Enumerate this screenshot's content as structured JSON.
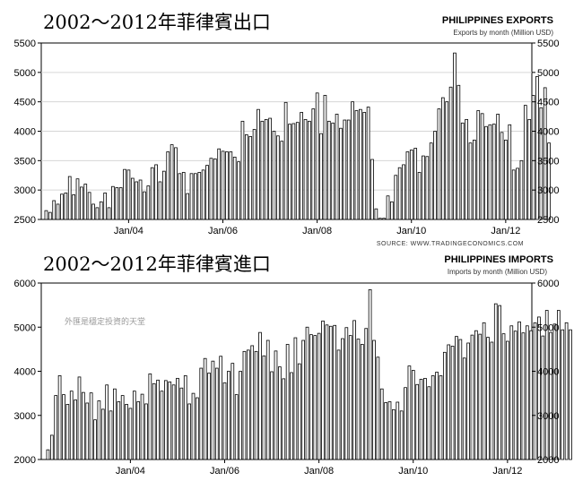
{
  "chart_data": [
    {
      "type": "bar",
      "title": "2002～2012年菲律賓出口",
      "brand_title": "PHILIPPINES EXPORTS",
      "subtitle": "Exports by month (Million USD)",
      "source": "SOURCE: WWW.TRADINGECONOMICS.COM",
      "ylim": [
        2500,
        5500
      ],
      "yticks": [
        2500,
        3000,
        3500,
        4000,
        4500,
        5000,
        5500
      ],
      "xticks": [
        {
          "label": "Jan/04",
          "index": 21
        },
        {
          "label": "Jan/06",
          "index": 45
        },
        {
          "label": "Jan/08",
          "index": 69
        },
        {
          "label": "Jan/10",
          "index": 93
        },
        {
          "label": "Jan/12",
          "index": 117
        }
      ],
      "grid": true,
      "start": "2002-04",
      "values": [
        2650,
        2620,
        2820,
        2760,
        2930,
        2950,
        3230,
        2920,
        3190,
        3050,
        3100,
        2960,
        2760,
        2700,
        2800,
        2950,
        2700,
        3060,
        3040,
        3040,
        3350,
        3340,
        3200,
        3140,
        3170,
        2970,
        3070,
        3380,
        3430,
        3140,
        3320,
        3650,
        3770,
        3720,
        3280,
        3300,
        2940,
        3280,
        3280,
        3300,
        3340,
        3420,
        3540,
        3530,
        3700,
        3660,
        3650,
        3650,
        3560,
        3480,
        4170,
        3940,
        3910,
        4030,
        4370,
        4170,
        4200,
        4220,
        4000,
        3920,
        3830,
        4490,
        4120,
        4130,
        4150,
        4320,
        4200,
        4170,
        4380,
        4650,
        3960,
        4610,
        4170,
        4140,
        4290,
        4050,
        4190,
        4190,
        4500,
        4350,
        4370,
        4320,
        4410,
        3520,
        2680,
        2520,
        2520,
        2900,
        2800,
        3250,
        3380,
        3430,
        3650,
        3680,
        3710,
        3300,
        3580,
        3570,
        3800,
        4000,
        4380,
        4570,
        4500,
        4750,
        5330,
        4780,
        4140,
        4200,
        3800,
        3850,
        4350,
        4300,
        4080,
        4110,
        4120,
        4290,
        3980,
        3850,
        4110,
        3340,
        3370,
        3500,
        4440,
        4200,
        4610,
        4930,
        4400,
        4740,
        3800
      ]
    },
    {
      "type": "bar",
      "title": "2002～2012年菲律賓進口",
      "brand_title": "PHILIPPINES IMPORTS",
      "subtitle": "Imports by month (Million USD)",
      "watermark": "外匯是穩定投資的天堂",
      "ylim": [
        2000,
        6000
      ],
      "yticks": [
        2000,
        3000,
        4000,
        5000,
        6000
      ],
      "xticks": [
        {
          "label": "Jan/04",
          "index": 21
        },
        {
          "label": "Jan/06",
          "index": 45
        },
        {
          "label": "Jan/08",
          "index": 69
        },
        {
          "label": "Jan/10",
          "index": 93
        },
        {
          "label": "Jan/12",
          "index": 117
        }
      ],
      "grid": false,
      "start": "2002-04",
      "values": [
        2220,
        2550,
        3450,
        3900,
        3470,
        3250,
        3550,
        3350,
        3870,
        3520,
        3280,
        3510,
        2900,
        3330,
        3140,
        3690,
        3100,
        3600,
        3310,
        3450,
        3250,
        3160,
        3550,
        3310,
        3480,
        3260,
        3940,
        3720,
        3800,
        3550,
        3790,
        3760,
        3690,
        3840,
        3620,
        3900,
        3260,
        3500,
        3400,
        4070,
        4290,
        3960,
        4230,
        4070,
        4340,
        3740,
        4000,
        4180,
        3470,
        4000,
        4450,
        4480,
        4580,
        4450,
        4880,
        4350,
        4700,
        3990,
        4460,
        4100,
        3830,
        4610,
        3970,
        4760,
        4170,
        4700,
        5000,
        4830,
        4810,
        4860,
        5140,
        5050,
        5020,
        5040,
        4480,
        4740,
        4990,
        4810,
        5150,
        4730,
        4610,
        4970,
        5850,
        4700,
        4320,
        3600,
        3290,
        3310,
        3130,
        3300,
        3100,
        3630,
        4120,
        4020,
        3700,
        3820,
        3840,
        3650,
        3900,
        3980,
        3900,
        4430,
        4600,
        4570,
        4790,
        4720,
        4300,
        4640,
        4820,
        4920,
        4840,
        5100,
        4770,
        4660,
        5530,
        5490,
        4850,
        4680,
        5030,
        4910,
        5120,
        4870,
        5030,
        4920,
        5100,
        5230,
        4800,
        5380,
        4880,
        5070,
        5380,
        4940,
        5100,
        4940
      ]
    }
  ]
}
